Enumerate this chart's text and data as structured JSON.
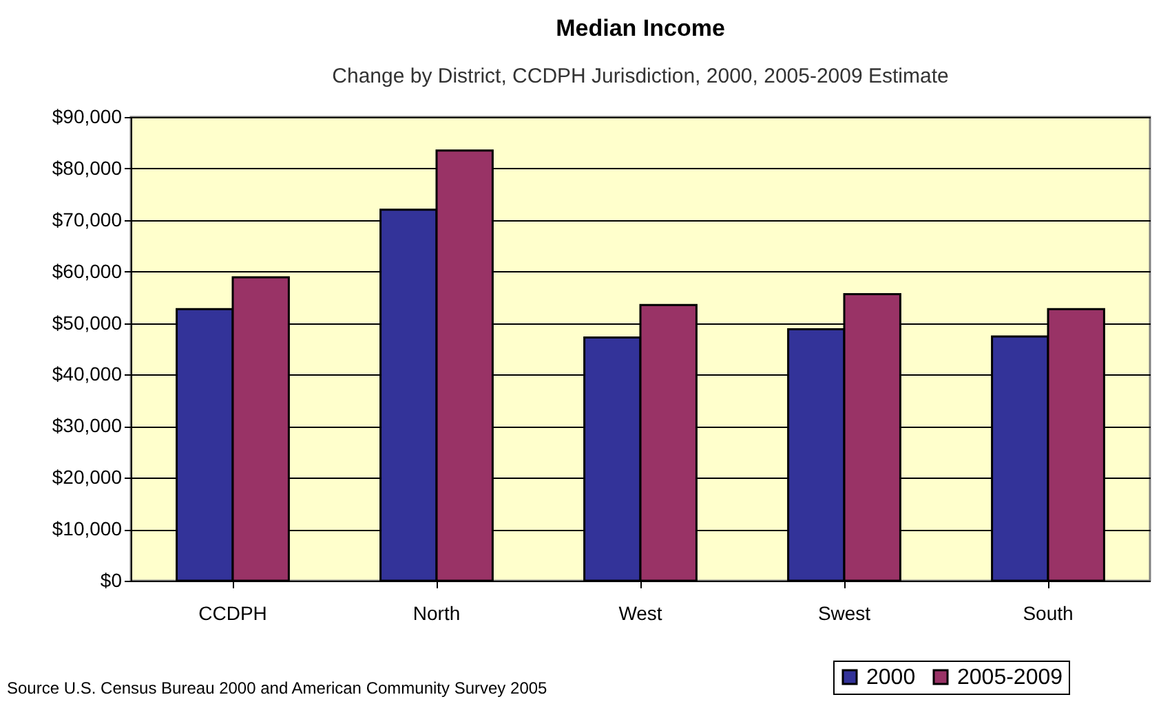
{
  "chart_data": {
    "type": "bar",
    "title": "Median Income",
    "subtitle": "Change by District, CCDPH Jurisdiction, 2000, 2005-2009 Estimate",
    "categories": [
      "CCDPH",
      "North",
      "West",
      "Swest",
      "South"
    ],
    "series": [
      {
        "name": "2000",
        "color": "#333399",
        "values": [
          52700,
          72000,
          47200,
          48800,
          47400
        ]
      },
      {
        "name": "2005-2009",
        "color": "#993366",
        "values": [
          58900,
          83500,
          53500,
          55600,
          52700
        ]
      }
    ],
    "ylim": [
      0,
      90000
    ],
    "yticks": [
      {
        "value": 0,
        "label": "$0"
      },
      {
        "value": 10000,
        "label": "$10,000"
      },
      {
        "value": 20000,
        "label": "$20,000"
      },
      {
        "value": 30000,
        "label": "$30,000"
      },
      {
        "value": 40000,
        "label": "$40,000"
      },
      {
        "value": 50000,
        "label": "$50,000"
      },
      {
        "value": 60000,
        "label": "$60,000"
      },
      {
        "value": 70000,
        "label": "$70,000"
      },
      {
        "value": 80000,
        "label": "$80,000"
      },
      {
        "value": 90000,
        "label": "$90,000"
      }
    ],
    "grid": "y",
    "legend": "bottom right",
    "annotations": [
      "Source U.S. Census Bureau 2000 and American Community Survey 2005"
    ]
  }
}
